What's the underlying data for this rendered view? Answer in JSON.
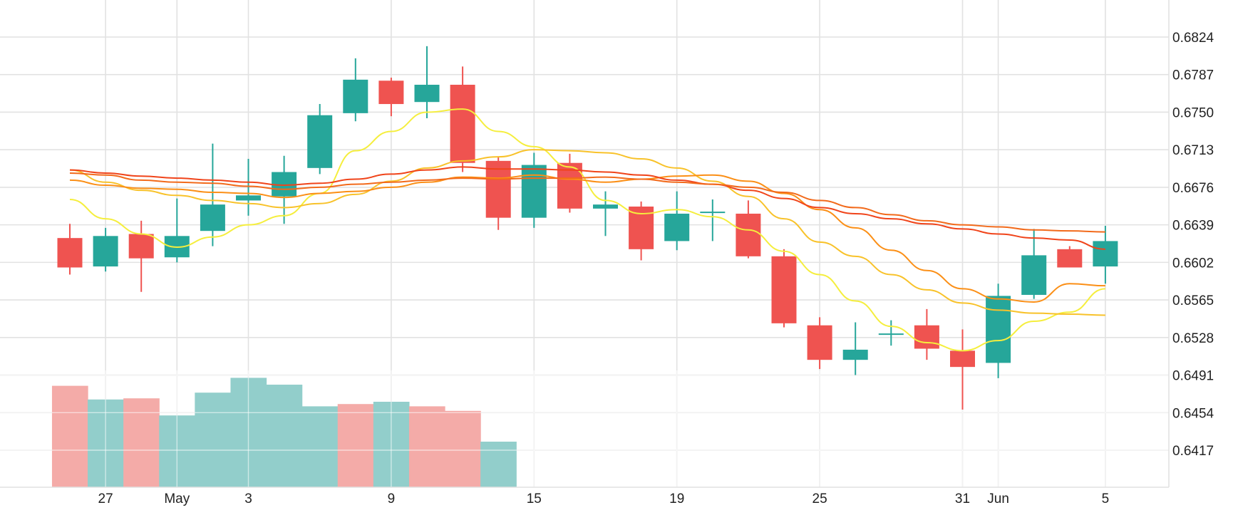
{
  "chart_data": {
    "type": "candlestick",
    "x_tick_labels": [
      {
        "label": "27",
        "at": 1
      },
      {
        "label": "May",
        "at": 3
      },
      {
        "label": "3",
        "at": 5
      },
      {
        "label": "9",
        "at": 9
      },
      {
        "label": "15",
        "at": 13
      },
      {
        "label": "19",
        "at": 17
      },
      {
        "label": "25",
        "at": 21
      },
      {
        "label": "31",
        "at": 25
      },
      {
        "label": "Jun",
        "at": 26
      },
      {
        "label": "5",
        "at": 29
      }
    ],
    "y_tick_labels": [
      "0.6824",
      "0.6787",
      "0.6750",
      "0.6713",
      "0.6676",
      "0.6639",
      "0.6602",
      "0.6565",
      "0.6528",
      "0.6491",
      "0.6454",
      "0.6417"
    ],
    "y_ticks": [
      0.6824,
      0.6787,
      0.675,
      0.6713,
      0.6676,
      0.6639,
      0.6602,
      0.6565,
      0.6528,
      0.6491,
      0.6454,
      0.6417
    ],
    "ylim": [
      0.6379,
      0.686
    ],
    "xlim": [
      -0.5,
      31
    ],
    "grid": true,
    "candles": [
      {
        "i": 0,
        "open": 0.6626,
        "high": 0.664,
        "low": 0.659,
        "close": 0.6597
      },
      {
        "i": 1,
        "open": 0.6598,
        "high": 0.6636,
        "low": 0.6593,
        "close": 0.6628
      },
      {
        "i": 2,
        "open": 0.663,
        "high": 0.6643,
        "low": 0.6573,
        "close": 0.6606
      },
      {
        "i": 3,
        "open": 0.6607,
        "high": 0.6665,
        "low": 0.6602,
        "close": 0.6628
      },
      {
        "i": 4,
        "open": 0.6633,
        "high": 0.6719,
        "low": 0.6618,
        "close": 0.6659
      },
      {
        "i": 5,
        "open": 0.6663,
        "high": 0.6704,
        "low": 0.6648,
        "close": 0.6668
      },
      {
        "i": 6,
        "open": 0.6667,
        "high": 0.6707,
        "low": 0.664,
        "close": 0.6691
      },
      {
        "i": 7,
        "open": 0.6695,
        "high": 0.6758,
        "low": 0.6689,
        "close": 0.6747
      },
      {
        "i": 8,
        "open": 0.6749,
        "high": 0.6803,
        "low": 0.6741,
        "close": 0.6782
      },
      {
        "i": 9,
        "open": 0.6781,
        "high": 0.6784,
        "low": 0.6746,
        "close": 0.6758
      },
      {
        "i": 10,
        "open": 0.676,
        "high": 0.6815,
        "low": 0.6744,
        "close": 0.6777
      },
      {
        "i": 11,
        "open": 0.6777,
        "high": 0.6795,
        "low": 0.6691,
        "close": 0.67
      },
      {
        "i": 12,
        "open": 0.6702,
        "high": 0.6706,
        "low": 0.6634,
        "close": 0.6646
      },
      {
        "i": 13,
        "open": 0.6646,
        "high": 0.671,
        "low": 0.6636,
        "close": 0.6698
      },
      {
        "i": 14,
        "open": 0.67,
        "high": 0.6709,
        "low": 0.6651,
        "close": 0.6655
      },
      {
        "i": 15,
        "open": 0.6655,
        "high": 0.6672,
        "low": 0.6628,
        "close": 0.6659
      },
      {
        "i": 16,
        "open": 0.6657,
        "high": 0.6662,
        "low": 0.6604,
        "close": 0.6615
      },
      {
        "i": 17,
        "open": 0.6623,
        "high": 0.6672,
        "low": 0.6614,
        "close": 0.665
      },
      {
        "i": 18,
        "open": 0.6652,
        "high": 0.6664,
        "low": 0.6623,
        "close": 0.6652
      },
      {
        "i": 19,
        "open": 0.665,
        "high": 0.6663,
        "low": 0.6606,
        "close": 0.6608
      },
      {
        "i": 20,
        "open": 0.6608,
        "high": 0.6615,
        "low": 0.6538,
        "close": 0.6542
      },
      {
        "i": 21,
        "open": 0.654,
        "high": 0.6548,
        "low": 0.6497,
        "close": 0.6506
      },
      {
        "i": 22,
        "open": 0.6506,
        "high": 0.6543,
        "low": 0.6491,
        "close": 0.6516
      },
      {
        "i": 23,
        "open": 0.6532,
        "high": 0.6545,
        "low": 0.652,
        "close": 0.6532
      },
      {
        "i": 24,
        "open": 0.654,
        "high": 0.6556,
        "low": 0.6506,
        "close": 0.6517
      },
      {
        "i": 25,
        "open": 0.6515,
        "high": 0.6536,
        "low": 0.6457,
        "close": 0.6499
      },
      {
        "i": 26,
        "open": 0.6503,
        "high": 0.6581,
        "low": 0.6488,
        "close": 0.6569
      },
      {
        "i": 27,
        "open": 0.657,
        "high": 0.6635,
        "low": 0.6566,
        "close": 0.6609
      },
      {
        "i": 28,
        "open": 0.6615,
        "high": 0.6618,
        "low": 0.6597,
        "close": 0.6597
      },
      {
        "i": 29,
        "open": 0.6598,
        "high": 0.6638,
        "low": 0.6581,
        "close": 0.6623
      }
    ],
    "volume": [
      {
        "i": 0,
        "value": 0.89,
        "direction": "down"
      },
      {
        "i": 1,
        "value": 0.77,
        "direction": "up"
      },
      {
        "i": 2,
        "value": 0.78,
        "direction": "down"
      },
      {
        "i": 3,
        "value": 0.63,
        "direction": "up"
      },
      {
        "i": 4,
        "value": 0.83,
        "direction": "up"
      },
      {
        "i": 5,
        "value": 0.96,
        "direction": "up"
      },
      {
        "i": 6,
        "value": 0.9,
        "direction": "up"
      },
      {
        "i": 7,
        "value": 0.71,
        "direction": "up"
      },
      {
        "i": 8,
        "value": 0.73,
        "direction": "down"
      },
      {
        "i": 9,
        "value": 0.75,
        "direction": "up"
      },
      {
        "i": 10,
        "value": 0.71,
        "direction": "down"
      },
      {
        "i": 11,
        "value": 0.67,
        "direction": "down"
      },
      {
        "i": 12,
        "value": 0.4,
        "direction": "up"
      }
    ],
    "moving_averages": [
      {
        "color": "#f5ee3d",
        "values": [
          [
            0,
            0.6664
          ],
          [
            1,
            0.6645
          ],
          [
            2,
            0.663
          ],
          [
            3,
            0.6617
          ],
          [
            4,
            0.6627
          ],
          [
            5,
            0.6639
          ],
          [
            6,
            0.6648
          ],
          [
            7,
            0.667
          ],
          [
            8,
            0.6712
          ],
          [
            9,
            0.6731
          ],
          [
            10,
            0.675
          ],
          [
            11,
            0.6753
          ],
          [
            12,
            0.6731
          ],
          [
            13,
            0.6716
          ],
          [
            14,
            0.6696
          ],
          [
            15,
            0.6663
          ],
          [
            16,
            0.665
          ],
          [
            17,
            0.6654
          ],
          [
            18,
            0.6647
          ],
          [
            19,
            0.6634
          ],
          [
            20,
            0.6613
          ],
          [
            21,
            0.659
          ],
          [
            22,
            0.6564
          ],
          [
            23,
            0.6539
          ],
          [
            24,
            0.6523
          ],
          [
            25,
            0.6515
          ],
          [
            26,
            0.6525
          ],
          [
            27,
            0.6544
          ],
          [
            28,
            0.6553
          ],
          [
            29,
            0.6576
          ]
        ]
      },
      {
        "color": "#f8c22a",
        "values": [
          [
            0,
            0.6693
          ],
          [
            1,
            0.6681
          ],
          [
            2,
            0.6673
          ],
          [
            3,
            0.6668
          ],
          [
            4,
            0.6663
          ],
          [
            5,
            0.666
          ],
          [
            6,
            0.6656
          ],
          [
            7,
            0.666
          ],
          [
            8,
            0.6669
          ],
          [
            9,
            0.6682
          ],
          [
            10,
            0.6695
          ],
          [
            11,
            0.6702
          ],
          [
            12,
            0.6706
          ],
          [
            13,
            0.6713
          ],
          [
            14,
            0.6712
          ],
          [
            15,
            0.671
          ],
          [
            16,
            0.6704
          ],
          [
            17,
            0.6695
          ],
          [
            18,
            0.6682
          ],
          [
            19,
            0.6667
          ],
          [
            20,
            0.6645
          ],
          [
            21,
            0.6622
          ],
          [
            22,
            0.6608
          ],
          [
            23,
            0.659
          ],
          [
            24,
            0.6575
          ],
          [
            25,
            0.6562
          ],
          [
            26,
            0.6555
          ],
          [
            27,
            0.6552
          ],
          [
            28,
            0.6551
          ],
          [
            29,
            0.655
          ]
        ]
      },
      {
        "color": "#fb8f16",
        "values": [
          [
            0,
            0.6683
          ],
          [
            1,
            0.6678
          ],
          [
            2,
            0.6675
          ],
          [
            3,
            0.6674
          ],
          [
            4,
            0.6671
          ],
          [
            5,
            0.667
          ],
          [
            6,
            0.6666
          ],
          [
            7,
            0.667
          ],
          [
            8,
            0.6672
          ],
          [
            9,
            0.6676
          ],
          [
            10,
            0.6681
          ],
          [
            11,
            0.6686
          ],
          [
            12,
            0.6685
          ],
          [
            13,
            0.6688
          ],
          [
            14,
            0.6684
          ],
          [
            15,
            0.6681
          ],
          [
            16,
            0.6684
          ],
          [
            17,
            0.6687
          ],
          [
            18,
            0.6688
          ],
          [
            19,
            0.6682
          ],
          [
            20,
            0.667
          ],
          [
            21,
            0.6654
          ],
          [
            22,
            0.6636
          ],
          [
            23,
            0.6614
          ],
          [
            24,
            0.6594
          ],
          [
            25,
            0.6576
          ],
          [
            26,
            0.6566
          ],
          [
            27,
            0.6563
          ],
          [
            28,
            0.6581
          ],
          [
            29,
            0.6579
          ]
        ]
      },
      {
        "color": "#f0441a",
        "values": [
          [
            0,
            0.6693
          ],
          [
            1,
            0.669
          ],
          [
            2,
            0.6687
          ],
          [
            3,
            0.6685
          ],
          [
            4,
            0.6683
          ],
          [
            5,
            0.6681
          ],
          [
            6,
            0.6678
          ],
          [
            7,
            0.668
          ],
          [
            8,
            0.6684
          ],
          [
            9,
            0.6689
          ],
          [
            10,
            0.6693
          ],
          [
            11,
            0.6696
          ],
          [
            12,
            0.6694
          ],
          [
            13,
            0.6694
          ],
          [
            14,
            0.6693
          ],
          [
            15,
            0.6691
          ],
          [
            16,
            0.6688
          ],
          [
            17,
            0.6683
          ],
          [
            18,
            0.6679
          ],
          [
            19,
            0.6673
          ],
          [
            20,
            0.6665
          ],
          [
            21,
            0.6656
          ],
          [
            22,
            0.665
          ],
          [
            23,
            0.6645
          ],
          [
            24,
            0.664
          ],
          [
            25,
            0.6635
          ],
          [
            26,
            0.663
          ],
          [
            27,
            0.6626
          ],
          [
            28,
            0.6624
          ],
          [
            29,
            0.6615
          ]
        ]
      },
      {
        "color": "#f26a1b",
        "values": [
          [
            0,
            0.669
          ],
          [
            1,
            0.6688
          ],
          [
            2,
            0.6683
          ],
          [
            3,
            0.6681
          ],
          [
            4,
            0.668
          ],
          [
            5,
            0.6677
          ],
          [
            6,
            0.6674
          ],
          [
            7,
            0.6676
          ],
          [
            8,
            0.6679
          ],
          [
            9,
            0.6681
          ],
          [
            10,
            0.6683
          ],
          [
            11,
            0.6685
          ],
          [
            12,
            0.6684
          ],
          [
            13,
            0.6685
          ],
          [
            14,
            0.6685
          ],
          [
            15,
            0.6686
          ],
          [
            16,
            0.6684
          ],
          [
            17,
            0.6681
          ],
          [
            18,
            0.6679
          ],
          [
            19,
            0.6676
          ],
          [
            20,
            0.6671
          ],
          [
            21,
            0.6663
          ],
          [
            22,
            0.6656
          ],
          [
            23,
            0.6649
          ],
          [
            24,
            0.6643
          ],
          [
            25,
            0.6639
          ],
          [
            26,
            0.6637
          ],
          [
            27,
            0.6634
          ],
          [
            28,
            0.6633
          ],
          [
            29,
            0.6632
          ]
        ]
      }
    ],
    "colors": {
      "up": "#26a69a",
      "down": "#ef5350",
      "volume_up": "#92cecb",
      "volume_down": "#f4aba8",
      "grid": "#e2e2e2",
      "tick_text": "#222222"
    }
  }
}
